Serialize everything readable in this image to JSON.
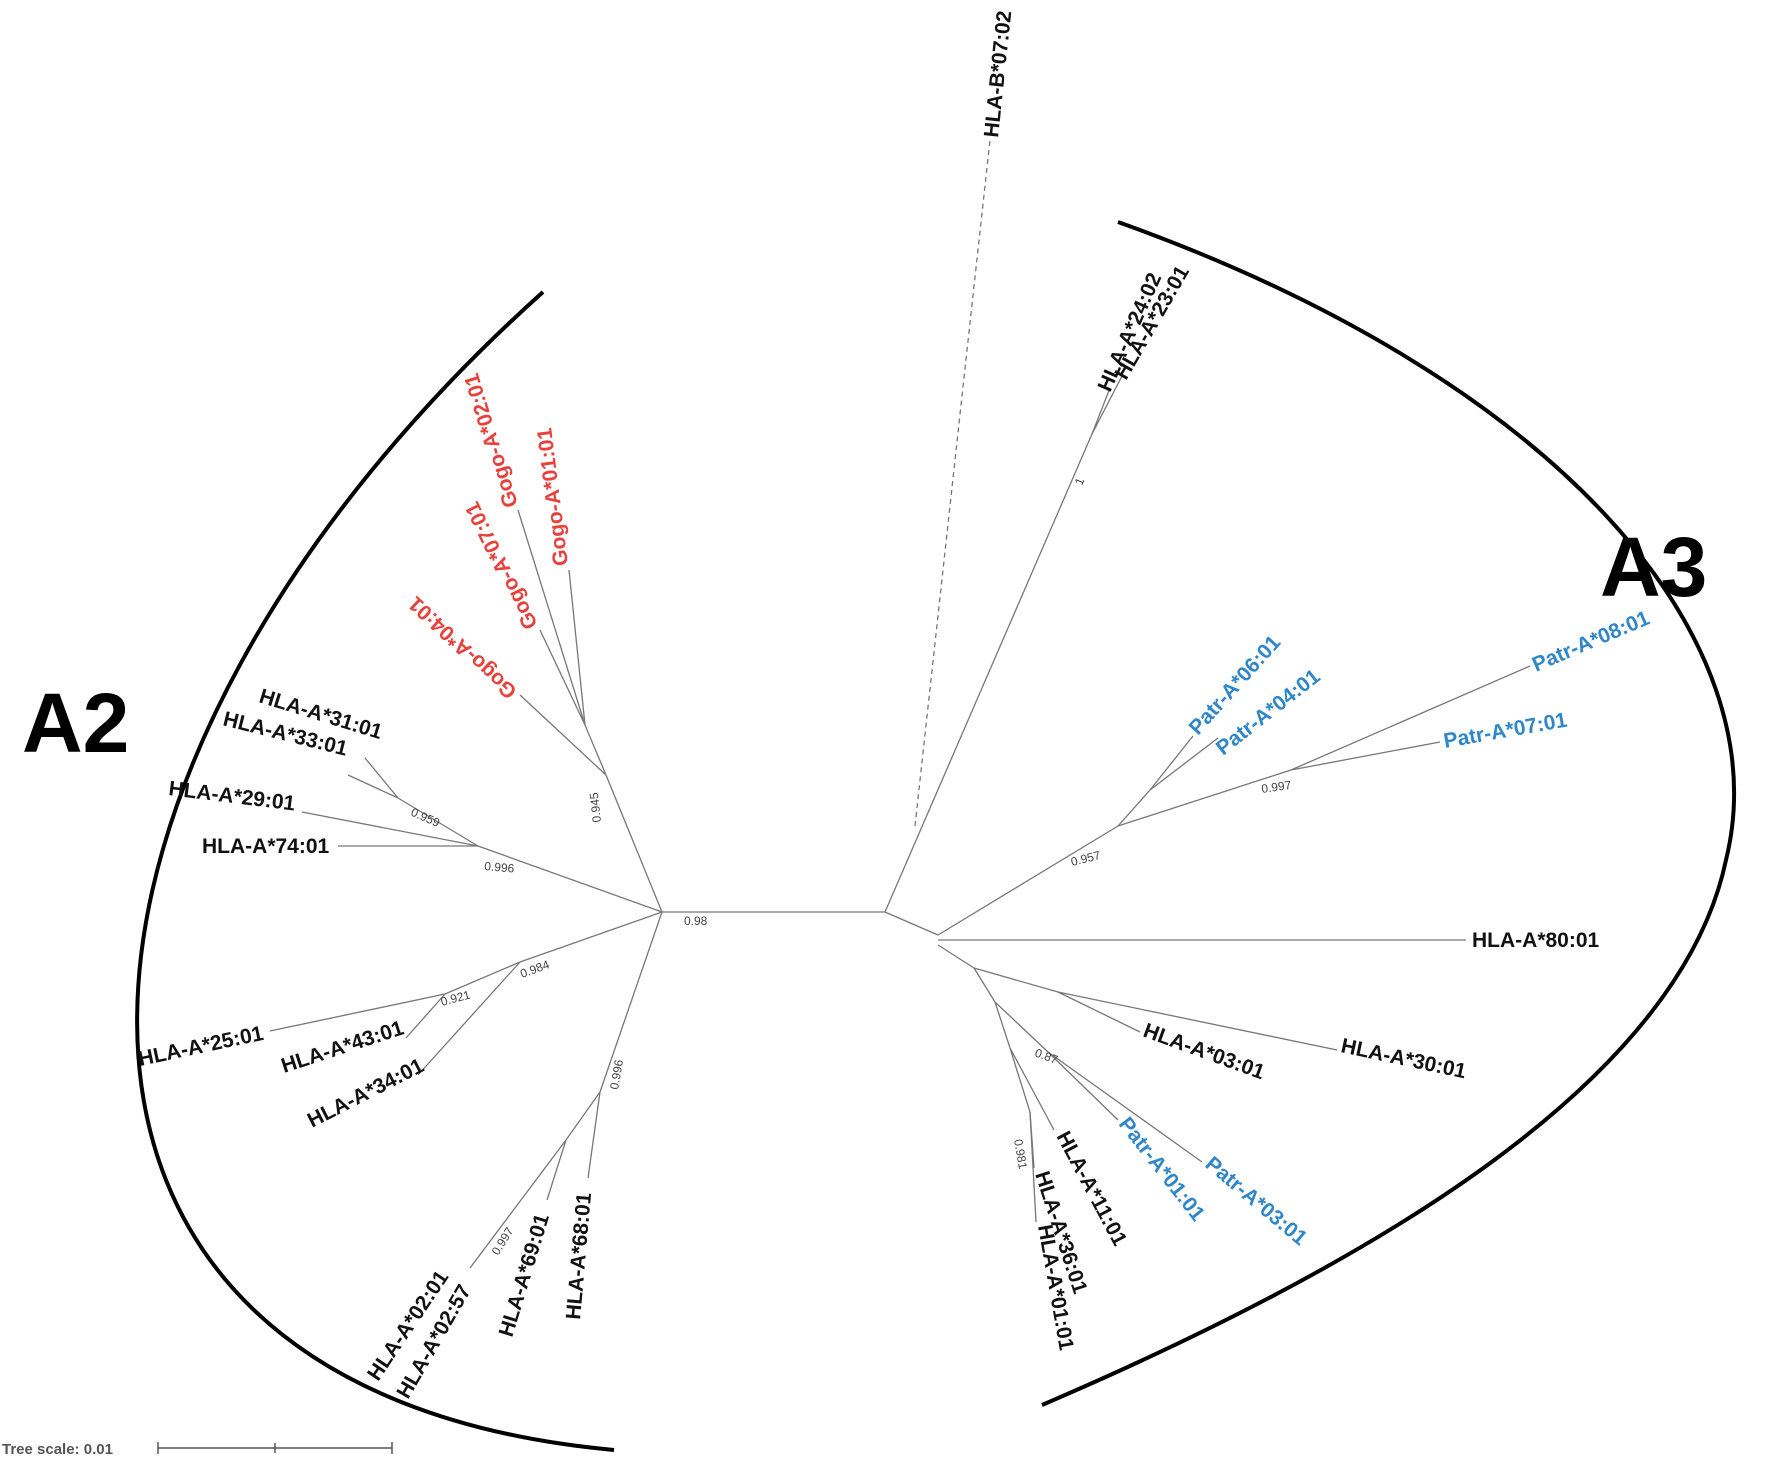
{
  "colors": {
    "human": "#111111",
    "gorilla": "#e8403a",
    "chimpanzee": "#2f86c9",
    "branch": "#777777"
  },
  "clades": {
    "left": "A2",
    "right": "A3"
  },
  "tree_scale": {
    "label": "Tree scale: 0.01",
    "value": 0.01
  },
  "leaves": {
    "hla_b0702": "HLA-B*07:02",
    "hla_a2402": "HLA-A*24:02",
    "hla_a2301": "HLA-A*23:01",
    "patr_a0801": "Patr-A*08:01",
    "patr_a0701": "Patr-A*07:01",
    "patr_a0601": "Patr-A*06:01",
    "patr_a0401": "Patr-A*04:01",
    "hla_a8001": "HLA-A*80:01",
    "hla_a3001": "HLA-A*30:01",
    "hla_a0301": "HLA-A*03:01",
    "patr_a0301": "Patr-A*03:01",
    "patr_a0101": "Patr-A*01:01",
    "hla_a1101": "HLA-A*11:01",
    "hla_a3601": "HLA-A*36:01",
    "hla_a0101": "HLA-A*01:01",
    "gogo_a0201": "Gogo-A*02:01",
    "gogo_a0101": "Gogo-A*01:01",
    "gogo_a0701": "Gogo-A*07:01",
    "gogo_a0401": "Gogo-A*04:01",
    "hla_a3101": "HLA-A*31:01",
    "hla_a3301": "HLA-A*33:01",
    "hla_a2901": "HLA-A*29:01",
    "hla_a7401": "HLA-A*74:01",
    "hla_a2501": "HLA-A*25:01",
    "hla_a4301": "HLA-A*43:01",
    "hla_a3401": "HLA-A*34:01",
    "hla_a6801": "HLA-A*68:01",
    "hla_a6901": "HLA-A*69:01",
    "hla_a0201": "HLA-A*02:01",
    "hla_a0257": "HLA-A*02:57"
  },
  "support": {
    "root": "0.98",
    "a24_a23": "1",
    "patr_group": "0.957",
    "patr_0801_0701": "0.997",
    "a03_patr": "0.87",
    "a11_a36_a01": "0.981",
    "gogo": "0.945",
    "a31_a33": "0.959",
    "a29_group": "0.996",
    "a25_group": "0.984",
    "a43_a34": "0.921",
    "a68_group": "0.996",
    "a69_a02": "0.997"
  }
}
